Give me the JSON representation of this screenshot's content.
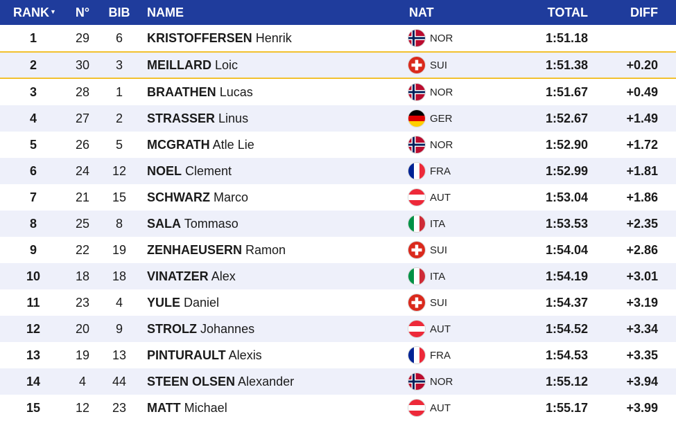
{
  "header": {
    "rank": "RANK",
    "rank_sort_icon": "caret-down-icon",
    "no": "N°",
    "bib": "BIB",
    "name": "NAME",
    "nat": "NAT",
    "total": "TOTAL",
    "diff": "DIFF"
  },
  "colors": {
    "header_bg": "#1f3c9c",
    "row_alt_bg": "#eef0fa",
    "highlight_border": "#f2c12e"
  },
  "rows": [
    {
      "rank": "1",
      "no": "29",
      "bib": "6",
      "surname": "KRISTOFFERSEN",
      "given": "Henrik",
      "nat": "NOR",
      "total": "1:51.18",
      "diff": ""
    },
    {
      "rank": "2",
      "no": "30",
      "bib": "3",
      "surname": "MEILLARD",
      "given": "Loic",
      "nat": "SUI",
      "total": "1:51.38",
      "diff": "+0.20"
    },
    {
      "rank": "3",
      "no": "28",
      "bib": "1",
      "surname": "BRAATHEN",
      "given": "Lucas",
      "nat": "NOR",
      "total": "1:51.67",
      "diff": "+0.49"
    },
    {
      "rank": "4",
      "no": "27",
      "bib": "2",
      "surname": "STRASSER",
      "given": "Linus",
      "nat": "GER",
      "total": "1:52.67",
      "diff": "+1.49"
    },
    {
      "rank": "5",
      "no": "26",
      "bib": "5",
      "surname": "MCGRATH",
      "given": "Atle Lie",
      "nat": "NOR",
      "total": "1:52.90",
      "diff": "+1.72"
    },
    {
      "rank": "6",
      "no": "24",
      "bib": "12",
      "surname": "NOEL",
      "given": "Clement",
      "nat": "FRA",
      "total": "1:52.99",
      "diff": "+1.81"
    },
    {
      "rank": "7",
      "no": "21",
      "bib": "15",
      "surname": "SCHWARZ",
      "given": "Marco",
      "nat": "AUT",
      "total": "1:53.04",
      "diff": "+1.86"
    },
    {
      "rank": "8",
      "no": "25",
      "bib": "8",
      "surname": "SALA",
      "given": "Tommaso",
      "nat": "ITA",
      "total": "1:53.53",
      "diff": "+2.35"
    },
    {
      "rank": "9",
      "no": "22",
      "bib": "19",
      "surname": "ZENHAEUSERN",
      "given": "Ramon",
      "nat": "SUI",
      "total": "1:54.04",
      "diff": "+2.86"
    },
    {
      "rank": "10",
      "no": "18",
      "bib": "18",
      "surname": "VINATZER",
      "given": "Alex",
      "nat": "ITA",
      "total": "1:54.19",
      "diff": "+3.01"
    },
    {
      "rank": "11",
      "no": "23",
      "bib": "4",
      "surname": "YULE",
      "given": "Daniel",
      "nat": "SUI",
      "total": "1:54.37",
      "diff": "+3.19"
    },
    {
      "rank": "12",
      "no": "20",
      "bib": "9",
      "surname": "STROLZ",
      "given": "Johannes",
      "nat": "AUT",
      "total": "1:54.52",
      "diff": "+3.34"
    },
    {
      "rank": "13",
      "no": "19",
      "bib": "13",
      "surname": "PINTURAULT",
      "given": "Alexis",
      "nat": "FRA",
      "total": "1:54.53",
      "diff": "+3.35"
    },
    {
      "rank": "14",
      "no": "4",
      "bib": "44",
      "surname": "STEEN OLSEN",
      "given": "Alexander",
      "nat": "NOR",
      "total": "1:55.12",
      "diff": "+3.94"
    },
    {
      "rank": "15",
      "no": "12",
      "bib": "23",
      "surname": "MATT",
      "given": "Michael",
      "nat": "AUT",
      "total": "1:55.17",
      "diff": "+3.99"
    }
  ]
}
